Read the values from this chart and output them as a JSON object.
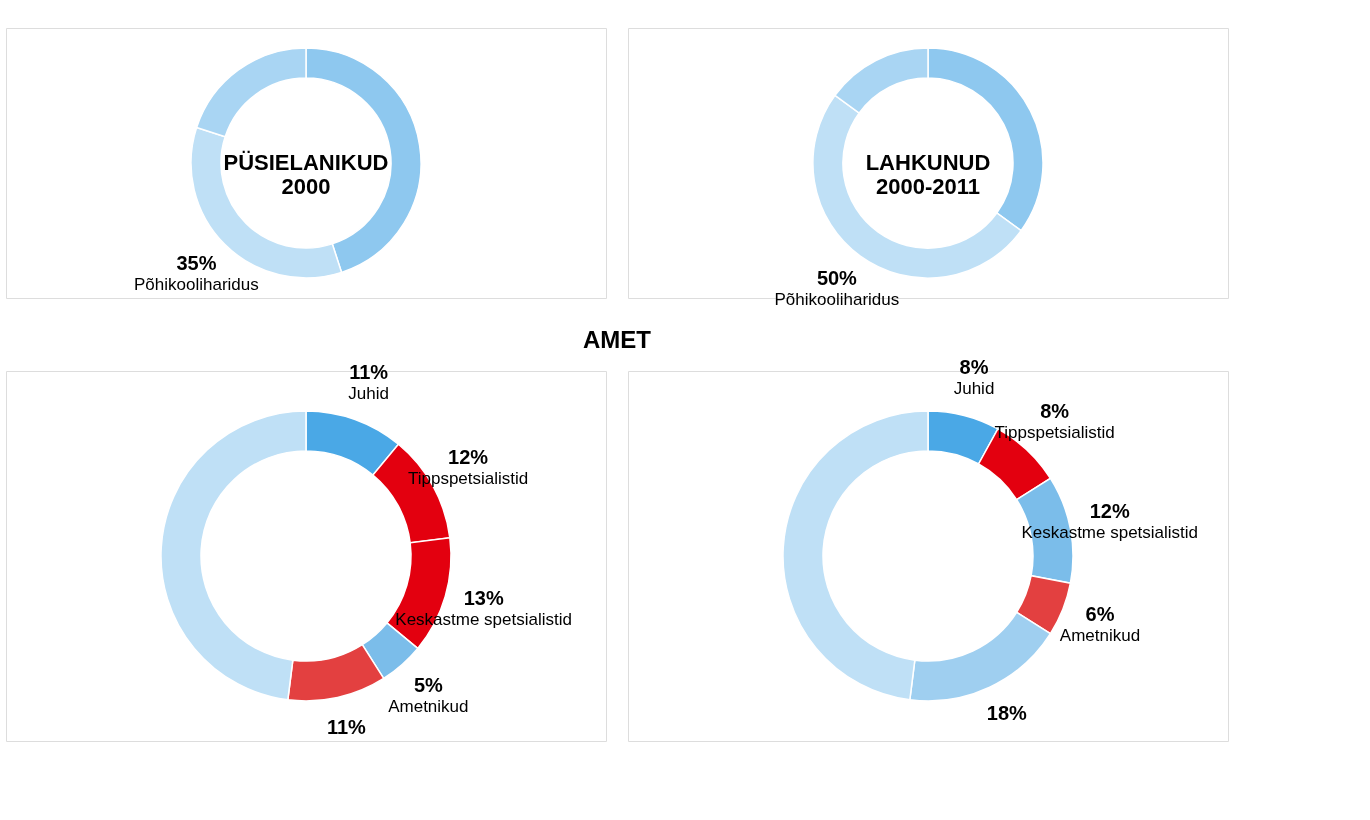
{
  "chart_data": [
    {
      "type": "donut",
      "title": "PÜSIELANIKUD 2000",
      "categories": [
        null,
        "Põhikooliharidus",
        null
      ],
      "values": [
        45,
        35,
        20
      ],
      "colors": [
        "#8ec8ef",
        "#bfe0f6",
        "#a9d5f3"
      ],
      "value_labels": [
        null,
        "35%",
        null
      ]
    },
    {
      "type": "donut",
      "title": "LAHKUNUD 2000-2011",
      "categories": [
        null,
        "Põhikooliharidus",
        null
      ],
      "values": [
        35,
        50,
        15
      ],
      "colors": [
        "#8ec8ef",
        "#bfe0f6",
        "#a9d5f3"
      ],
      "value_labels": [
        null,
        "50%",
        null
      ]
    },
    {
      "type": "donut",
      "title": "AMET",
      "categories": [
        "Juhid",
        "Tippspetsialistid",
        "Keskastme spetsialistid",
        "Ametnikud",
        null,
        null
      ],
      "values": [
        11,
        12,
        13,
        5,
        11,
        48
      ],
      "colors": [
        "#4aa8e6",
        "#e3000f",
        "#e3000f",
        "#7bbdea",
        "#e34040",
        "#bfe0f6"
      ],
      "value_labels": [
        "11%",
        "12%",
        "13%",
        "5%",
        "11%",
        null
      ]
    },
    {
      "type": "donut",
      "categories": [
        "Juhid",
        "Tippspetsialistid",
        "Keskastme spetsialistid",
        "Ametnikud",
        null,
        null
      ],
      "values": [
        8,
        8,
        12,
        6,
        18,
        48
      ],
      "colors": [
        "#4aa8e6",
        "#e3000f",
        "#7bbdea",
        "#e34040",
        "#9fcff0",
        "#bfe0f6"
      ],
      "value_labels": [
        "8%",
        "8%",
        "12%",
        "6%",
        "18%",
        null
      ]
    }
  ]
}
